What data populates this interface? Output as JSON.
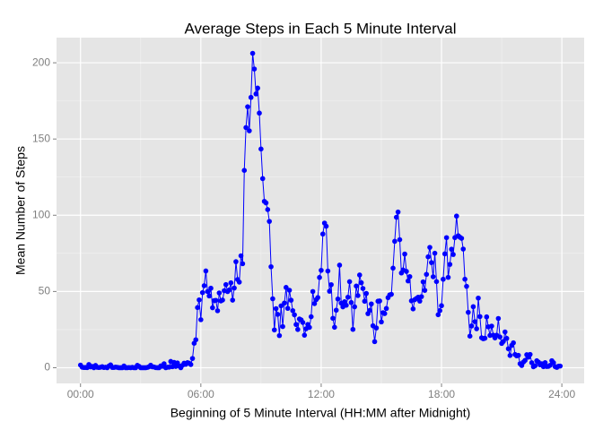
{
  "chart_data": {
    "type": "line",
    "title": "Average Steps in Each 5 Minute Interval",
    "x_label": "Beginning of 5 Minute Interval (HH:MM after Midnight)",
    "y_label": "Mean Number of Steps",
    "color": "#0000ff",
    "grid": true,
    "xlim": [
      -71.75,
      1506.75
    ],
    "xticks": [
      {
        "value": 0,
        "label": "00:00"
      },
      {
        "value": 360,
        "label": "06:00"
      },
      {
        "value": 720,
        "label": "12:00"
      },
      {
        "value": 1080,
        "label": "18:00"
      },
      {
        "value": 1440,
        "label": "24:00"
      }
    ],
    "ylim": [
      -10.3,
      216.5
    ],
    "yticks": [
      0,
      50,
      100,
      150,
      200
    ],
    "x": [
      0,
      5,
      10,
      15,
      20,
      25,
      30,
      35,
      40,
      45,
      50,
      55,
      60,
      65,
      70,
      75,
      80,
      85,
      90,
      95,
      100,
      105,
      110,
      115,
      120,
      125,
      130,
      135,
      140,
      145,
      150,
      155,
      160,
      165,
      170,
      175,
      180,
      185,
      190,
      195,
      200,
      205,
      210,
      215,
      220,
      225,
      230,
      235,
      240,
      245,
      250,
      255,
      260,
      265,
      270,
      275,
      280,
      285,
      290,
      295,
      300,
      305,
      310,
      315,
      320,
      325,
      330,
      335,
      340,
      345,
      350,
      355,
      360,
      365,
      370,
      375,
      380,
      385,
      390,
      395,
      400,
      405,
      410,
      415,
      420,
      425,
      430,
      435,
      440,
      445,
      450,
      455,
      460,
      465,
      470,
      475,
      480,
      485,
      490,
      495,
      500,
      505,
      510,
      515,
      520,
      525,
      530,
      535,
      540,
      545,
      550,
      555,
      560,
      565,
      570,
      575,
      580,
      585,
      590,
      595,
      600,
      605,
      610,
      615,
      620,
      625,
      630,
      635,
      640,
      645,
      650,
      655,
      660,
      665,
      670,
      675,
      680,
      685,
      690,
      695,
      700,
      705,
      710,
      715,
      720,
      725,
      730,
      735,
      740,
      745,
      750,
      755,
      760,
      765,
      770,
      775,
      780,
      785,
      790,
      795,
      800,
      805,
      810,
      815,
      820,
      825,
      830,
      835,
      840,
      845,
      850,
      855,
      860,
      865,
      870,
      875,
      880,
      885,
      890,
      895,
      900,
      905,
      910,
      915,
      920,
      925,
      930,
      935,
      940,
      945,
      950,
      955,
      960,
      965,
      970,
      975,
      980,
      985,
      990,
      995,
      1000,
      1005,
      1010,
      1015,
      1020,
      1025,
      1030,
      1035,
      1040,
      1045,
      1050,
      1055,
      1060,
      1065,
      1070,
      1075,
      1080,
      1085,
      1090,
      1095,
      1100,
      1105,
      1110,
      1115,
      1120,
      1125,
      1130,
      1135,
      1140,
      1145,
      1150,
      1155,
      1160,
      1165,
      1170,
      1175,
      1180,
      1185,
      1190,
      1195,
      1200,
      1205,
      1210,
      1215,
      1220,
      1225,
      1230,
      1235,
      1240,
      1245,
      1250,
      1255,
      1260,
      1265,
      1270,
      1275,
      1280,
      1285,
      1290,
      1295,
      1300,
      1305,
      1310,
      1315,
      1320,
      1325,
      1330,
      1335,
      1340,
      1345,
      1350,
      1355,
      1360,
      1365,
      1370,
      1375,
      1380,
      1385,
      1390,
      1395,
      1400,
      1405,
      1410,
      1415,
      1420,
      1425,
      1430,
      1435
    ],
    "values": [
      1.72,
      0.34,
      0.13,
      0.15,
      0.08,
      2.09,
      0.53,
      0.87,
      0,
      1.47,
      0.3,
      0.13,
      0.32,
      0.68,
      0.15,
      0.34,
      0,
      1.11,
      1.83,
      0.17,
      0.17,
      0.38,
      0.26,
      0,
      0,
      0,
      1.13,
      0,
      0,
      0.13,
      0,
      0.23,
      0,
      0,
      1.55,
      0.94,
      0,
      0,
      0,
      0,
      0.21,
      0.62,
      1.62,
      0.58,
      0.49,
      0.08,
      0,
      0,
      1.19,
      0.94,
      2.57,
      0,
      0.34,
      0.36,
      4.11,
      0.66,
      3.49,
      0.83,
      3.11,
      1.11,
      0,
      1.57,
      3,
      2.25,
      3.32,
      2.96,
      2.09,
      6.06,
      16.02,
      18.34,
      39.45,
      44.49,
      31.49,
      49.26,
      53.77,
      63.45,
      49.96,
      47.08,
      52.15,
      39.34,
      44.02,
      44.17,
      37.36,
      49.04,
      43.81,
      44.38,
      50.51,
      54.51,
      49.92,
      50.98,
      55.68,
      44.32,
      52.26,
      69.55,
      57.85,
      56.15,
      73.38,
      68.21,
      129.43,
      157.53,
      171.15,
      155.4,
      177.3,
      206.17,
      195.92,
      179.57,
      183.4,
      167.02,
      143.45,
      124.04,
      109.11,
      108.11,
      103.72,
      95.96,
      66.21,
      45.23,
      24.79,
      38.75,
      34.98,
      21.06,
      40.57,
      26.98,
      42.42,
      52.66,
      38.92,
      50.79,
      44.28,
      37.42,
      34.7,
      28.34,
      25.09,
      31.94,
      31.36,
      29.68,
      21.32,
      25.55,
      28.38,
      26.47,
      33.43,
      49.98,
      42.04,
      44.6,
      46.04,
      59.19,
      63.87,
      87.7,
      94.85,
      92.77,
      63.4,
      50.17,
      54.47,
      32.42,
      26.53,
      37.74,
      45.06,
      67.28,
      42.34,
      39.89,
      43.26,
      40.98,
      46.25,
      56.43,
      42.75,
      25.13,
      39.96,
      53.55,
      47.32,
      60.81,
      55.75,
      51.96,
      43.58,
      48.7,
      35.47,
      37.55,
      41.85,
      27.51,
      17.11,
      26.08,
      43.62,
      43.77,
      30.02,
      36.08,
      35.49,
      38.85,
      45.96,
      47.75,
      48.13,
      65.32,
      82.91,
      98.66,
      102.11,
      83.96,
      62.13,
      64.13,
      74.55,
      63.17,
      56.91,
      59.77,
      43.87,
      38.57,
      44.66,
      45.45,
      46.21,
      43.68,
      46.62,
      56.3,
      50.72,
      61.23,
      72.72,
      78.94,
      68.94,
      59.66,
      75.09,
      56.51,
      34.77,
      37.45,
      40.68,
      58.02,
      74.7,
      85.32,
      59.26,
      67.77,
      77.7,
      74.25,
      85.34,
      99.45,
      86.58,
      85.6,
      84.87,
      77.83,
      58.04,
      53.36,
      36.32,
      20.72,
      27.4,
      40.02,
      30.21,
      25.55,
      45.66,
      33.53,
      19.62,
      19.02,
      19.34,
      33.34,
      26.81,
      21.17,
      27.3,
      21.34,
      19.55,
      21.32,
      32.3,
      20.15,
      15.94,
      17.23,
      23.45,
      19.25,
      12.45,
      8.02,
      14.66,
      16.3,
      8.68,
      7.79,
      8.13,
      2.62,
      1.45,
      3.68,
      4.81,
      8.51,
      6.94,
      8.7,
      3.25,
      0.62,
      1.28,
      4.58,
      3.7,
      1.91,
      2.6,
      0.7,
      3.3,
      0.8,
      0.9,
      1.6,
      4.6,
      3.3,
      0.7,
      0.2,
      1.0,
      1.08
    ]
  }
}
